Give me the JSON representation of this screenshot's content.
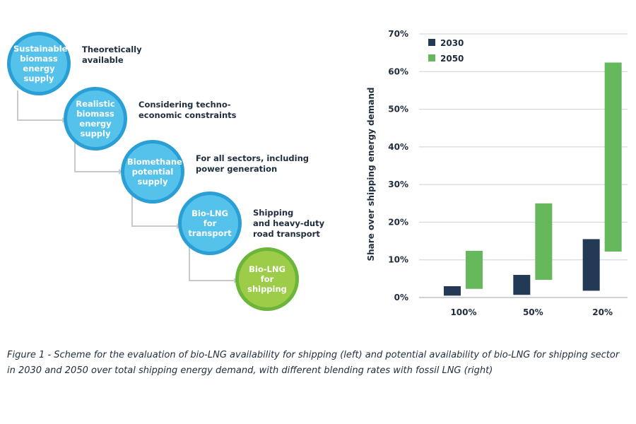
{
  "diagram": {
    "steps": [
      {
        "label": "Sustainable biomass energy supply",
        "lines": [
          "Sustainable",
          "biomass",
          "energy",
          "supply"
        ],
        "desc": "Theoretically\navailable"
      },
      {
        "label": "Realistic biomass energy supply",
        "lines": [
          "Realistic",
          "biomass",
          "energy",
          "supply"
        ],
        "desc": "Considering techno-\neconomic constraints"
      },
      {
        "label": "Biomethane potential supply",
        "lines": [
          "Biomethane",
          "potential",
          "supply"
        ],
        "desc": "For all sectors, including\npower generation"
      },
      {
        "label": "Bio-LNG for transport",
        "lines": [
          "Bio-LNG",
          "for",
          "transport"
        ],
        "desc": "Shipping\nand heavy-duty\nroad transport"
      },
      {
        "label": "Bio-LNG for shipping",
        "lines": [
          "Bio-LNG",
          "for",
          "shipping"
        ],
        "desc": ""
      }
    ],
    "colors": {
      "circle_fill": "#55c2ec",
      "circle_border": "#2a9fd6",
      "final_fill": "#9ccc48",
      "final_border": "#6bb63a",
      "connector": "#c9c9c9"
    }
  },
  "chart_data": {
    "type": "bar",
    "chart_style": "floating range bars",
    "categories": [
      "100%",
      "50%",
      "20%"
    ],
    "series": [
      {
        "name": "2030",
        "color": "#233a57",
        "ranges": [
          [
            0.5,
            3.0
          ],
          [
            0.7,
            6.0
          ],
          [
            1.8,
            15.5
          ]
        ]
      },
      {
        "name": "2050",
        "color": "#66b85c",
        "ranges": [
          [
            2.3,
            12.4
          ],
          [
            4.7,
            25.0
          ],
          [
            12.2,
            62.4
          ]
        ]
      }
    ],
    "ylabel": "Share over shipping energy demand",
    "xlabel": "",
    "ylim": [
      0,
      70
    ],
    "yticks": [
      "0%",
      "10%",
      "20%",
      "30%",
      "40%",
      "50%",
      "60%",
      "70%"
    ],
    "yticks_values": [
      0,
      10,
      20,
      30,
      40,
      50,
      60,
      70
    ],
    "legend_position": "top-left",
    "grid": true
  },
  "caption": "Figure 1 - Scheme for the evaluation of bio-LNG availability for shipping (left) and potential availability of bio-LNG for shipping sector in 2030 and 2050 over total shipping energy demand, with different blending rates with fossil LNG (right)"
}
